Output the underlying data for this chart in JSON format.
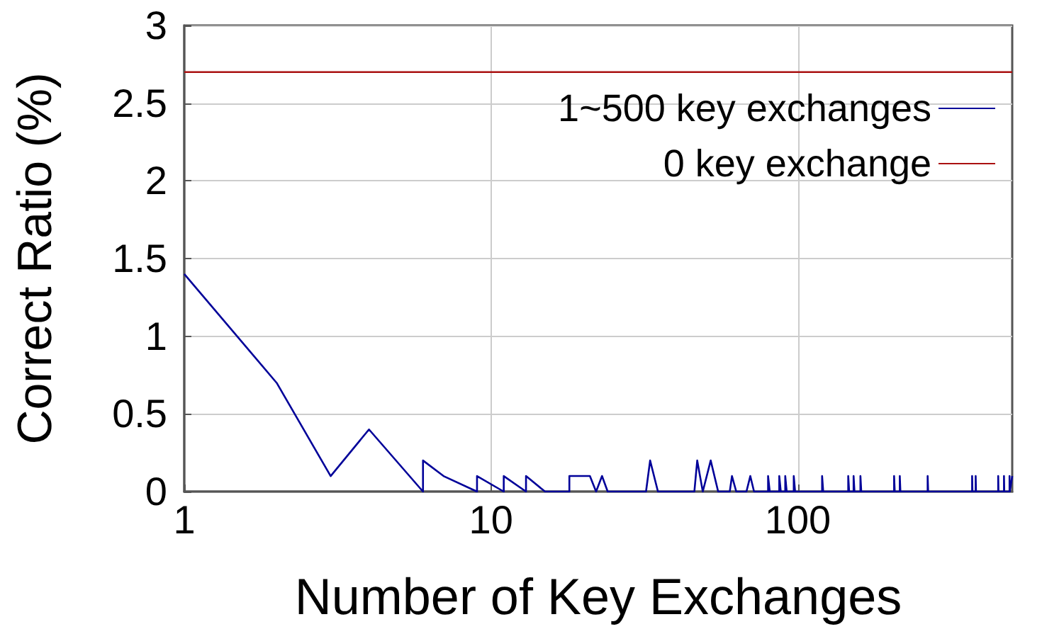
{
  "chart_data": {
    "type": "line",
    "xlabel": "Number of Key Exchanges",
    "ylabel": "Correct Ratio (%)",
    "log": "x",
    "xlim": [
      1,
      500
    ],
    "xticks": [
      1,
      10,
      100
    ],
    "ylim": [
      0,
      3
    ],
    "yticks": [
      0,
      0.5,
      1,
      1.5,
      2,
      2.5,
      3
    ],
    "grid": true,
    "legend": "top right",
    "marker": "none",
    "line_style": "solid",
    "series": [
      {
        "name": "1~500 key exchanges",
        "color": "#000099",
        "x": [
          1,
          2,
          3,
          4,
          6,
          6,
          7,
          9,
          9,
          11,
          11,
          13,
          13,
          15,
          18,
          18,
          21,
          22,
          23,
          24,
          32,
          33,
          35,
          46,
          47,
          49,
          52,
          55,
          60,
          61,
          63,
          68,
          70,
          72,
          80,
          80,
          81,
          87,
          87,
          88,
          91,
          91,
          92,
          97,
          97,
          98,
          120,
          120,
          121,
          146,
          146,
          147,
          152,
          152,
          153,
          160,
          160,
          161,
          206,
          206,
          207,
          215,
          215,
          216,
          265,
          265,
          266,
          370,
          370,
          371,
          380,
          380,
          381,
          450,
          450,
          451,
          470,
          470,
          471,
          490,
          490,
          491,
          500
        ],
        "values": [
          1.4,
          0.7,
          0.1,
          0.4,
          0,
          0.2,
          0.1,
          0,
          0.1,
          0,
          0.1,
          0,
          0.1,
          0,
          0,
          0.1,
          0.1,
          0,
          0.1,
          0,
          0,
          0.2,
          0,
          0,
          0.2,
          0,
          0.2,
          0,
          0,
          0.1,
          0,
          0,
          0.1,
          0,
          0,
          0.1,
          0,
          0,
          0.1,
          0,
          0,
          0.1,
          0,
          0,
          0.1,
          0,
          0,
          0.1,
          0,
          0,
          0.1,
          0,
          0,
          0.1,
          0,
          0,
          0.1,
          0,
          0,
          0.1,
          0,
          0,
          0.1,
          0,
          0,
          0.1,
          0,
          0,
          0.1,
          0,
          0,
          0.1,
          0,
          0,
          0.1,
          0,
          0,
          0.1,
          0,
          0,
          0.1,
          0,
          0.1
        ]
      },
      {
        "name": "0 key exchange",
        "color": "#aa1111",
        "x": [
          1,
          500
        ],
        "values": [
          2.7,
          2.7
        ]
      }
    ]
  }
}
